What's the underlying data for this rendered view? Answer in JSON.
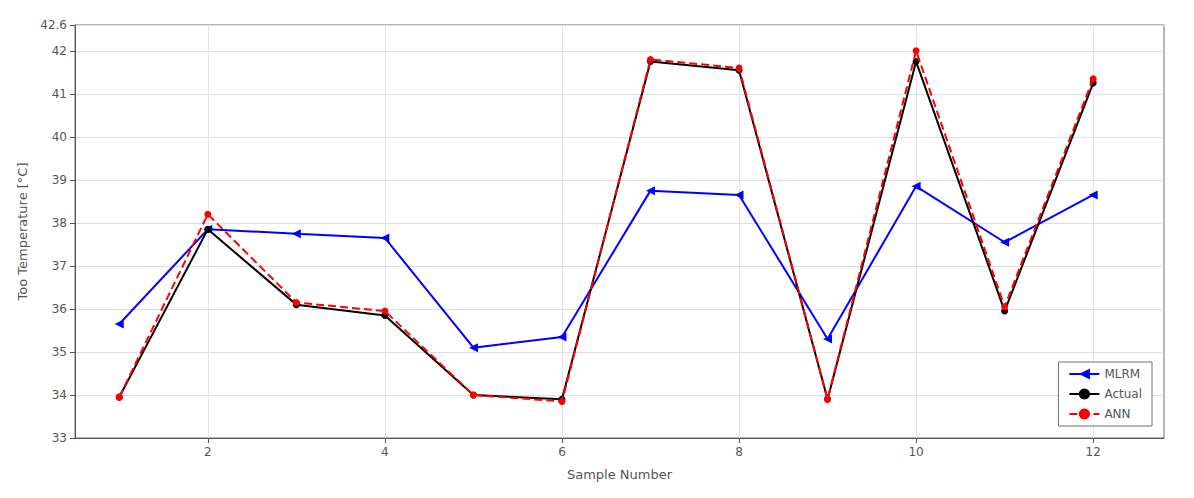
{
  "chart_data": {
    "type": "line",
    "x": [
      1,
      2,
      3,
      4,
      5,
      6,
      7,
      8,
      9,
      10,
      11,
      12
    ],
    "series": [
      {
        "name": "MLRM",
        "color": "#0000ff",
        "marker": "triangle-left",
        "line_style": "solid",
        "values": [
          35.65,
          37.85,
          37.75,
          37.65,
          35.1,
          35.35,
          38.75,
          38.65,
          35.3,
          38.85,
          37.55,
          38.65
        ]
      },
      {
        "name": "Actual",
        "color": "#000000",
        "marker": "circle",
        "line_style": "solid",
        "values": [
          33.95,
          37.85,
          36.1,
          35.85,
          34.0,
          33.9,
          41.75,
          41.55,
          33.9,
          41.75,
          35.95,
          41.25
        ]
      },
      {
        "name": "ANN",
        "color": "#ff0000",
        "marker": "circle",
        "line_style": "dashed",
        "values": [
          33.95,
          38.2,
          36.15,
          35.95,
          34.0,
          33.85,
          41.8,
          41.6,
          33.9,
          42.0,
          36.05,
          41.35
        ]
      }
    ],
    "xlabel": "Sample Number",
    "ylabel": "Too Temperature [°C]",
    "xlim": [
      0.5,
      12.8
    ],
    "ylim": [
      33,
      42.6
    ],
    "xticks": [
      2,
      4,
      6,
      8,
      10,
      12
    ],
    "yticks": [
      33,
      34,
      35,
      36,
      37,
      38,
      39,
      40,
      41,
      42
    ],
    "grid": true,
    "legend": "lower right"
  }
}
